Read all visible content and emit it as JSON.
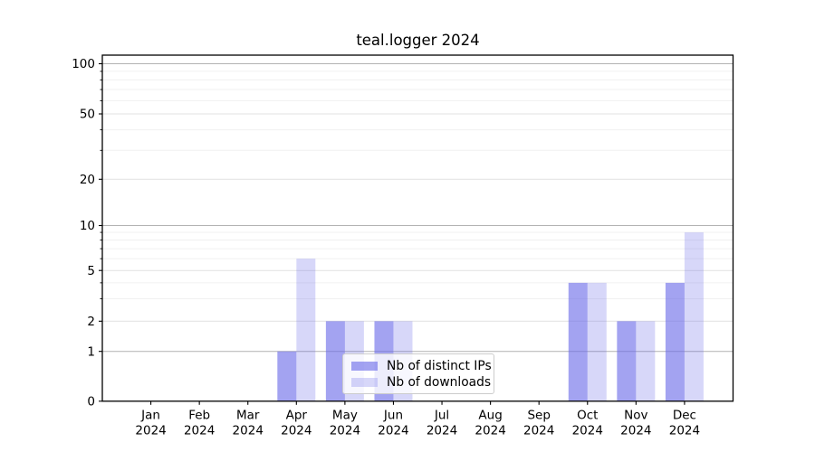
{
  "figure": {
    "background": "#ffffff"
  },
  "chart_data": {
    "type": "bar",
    "title": "teal.logger 2024",
    "categories": [
      "Jan",
      "Feb",
      "Mar",
      "Apr",
      "May",
      "Jun",
      "Jul",
      "Aug",
      "Sep",
      "Oct",
      "Nov",
      "Dec"
    ],
    "x_tick_second_line": "2024",
    "series": [
      {
        "name": "Nb of distinct IPs",
        "color": "#6a6ae8",
        "fill_opacity": 0.62,
        "solid_color": "#a5a5f1",
        "values": [
          0,
          0,
          0,
          1,
          2,
          2,
          0,
          0,
          0,
          4,
          2,
          4
        ]
      },
      {
        "name": "Nb of downloads",
        "color": "#6a6ae8",
        "fill_opacity": 0.27,
        "solid_color": "#d7d7f8",
        "values": [
          0,
          0,
          0,
          6,
          2,
          2,
          0,
          0,
          0,
          4,
          2,
          9
        ]
      }
    ],
    "y_axis": {
      "scale": "symlog",
      "tick_labels": [
        "0",
        "1",
        "2",
        "5",
        "10",
        "20",
        "50",
        "100"
      ],
      "ticks": [
        0,
        1,
        2,
        5,
        10,
        20,
        50,
        100
      ],
      "decade_ticks": [
        1,
        10,
        100
      ],
      "mid_ticks": [
        2,
        5,
        20,
        50
      ],
      "minor_gridlines": [
        3,
        4,
        6,
        7,
        8,
        9,
        30,
        40,
        60,
        70,
        80,
        90
      ],
      "ylim_bottom": 0
    },
    "legend": {
      "position": "lower center inside axes"
    },
    "grid": true
  },
  "colors": {
    "grid_decade": "#b2b2b2",
    "grid_mid": "#e1e1e1",
    "grid_minor": "#f0f0f0",
    "axis_spine": "#000000",
    "legend_border": "#cccccc"
  }
}
